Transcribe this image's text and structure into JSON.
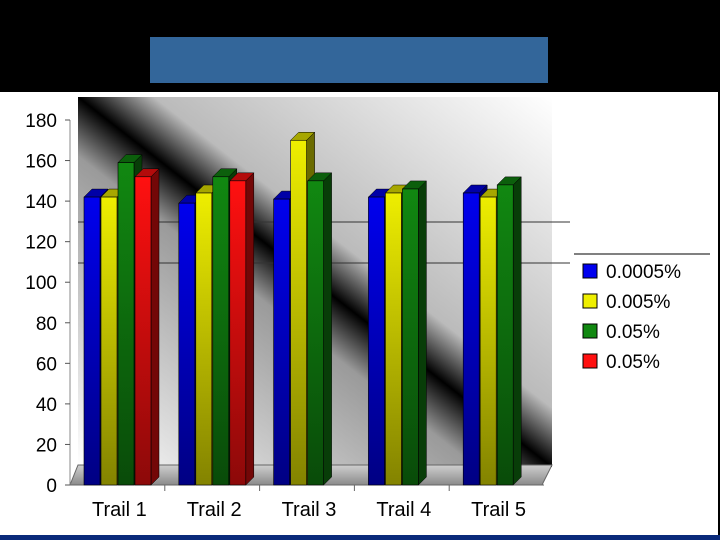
{
  "chart_data": {
    "type": "bar",
    "title": "",
    "xlabel": "",
    "ylabel": "",
    "ylim": [
      0,
      180
    ],
    "yticks": [
      "0",
      "20",
      "40",
      "60",
      "80",
      "100",
      "120",
      "140",
      "160",
      "180"
    ],
    "categories": [
      "Trail 1",
      "Trail 2",
      "Trail 3",
      "Trail 4",
      "Trail 5"
    ],
    "series": [
      {
        "name": "0.0005%",
        "color": "#0000ee",
        "values": [
          142,
          139,
          141,
          142,
          144
        ]
      },
      {
        "name": "0.005%",
        "color": "#eeee00",
        "values": [
          142,
          144,
          170,
          144,
          142
        ]
      },
      {
        "name": "0.05%",
        "color": "#118811",
        "values": [
          159,
          152,
          150,
          146,
          148
        ]
      },
      {
        "name": "0.05%",
        "color": "#ff1010",
        "values": [
          152,
          150,
          null,
          null,
          null
        ]
      }
    ],
    "legend_position": "right",
    "style": "3d-bars"
  },
  "colors": {
    "title_banner": "#33669a",
    "background": "#000000"
  }
}
